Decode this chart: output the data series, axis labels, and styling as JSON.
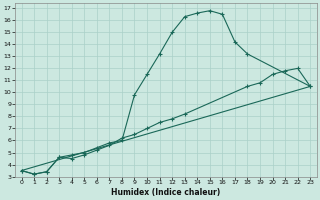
{
  "xlabel": "Humidex (Indice chaleur)",
  "bg_color": "#cce8e0",
  "grid_color": "#aad0c8",
  "line_color": "#1a6858",
  "xlim": [
    -0.5,
    23.5
  ],
  "ylim": [
    3,
    17.4
  ],
  "xticks": [
    0,
    1,
    2,
    3,
    4,
    5,
    6,
    7,
    8,
    9,
    10,
    11,
    12,
    13,
    14,
    15,
    16,
    17,
    18,
    19,
    20,
    21,
    22,
    23
  ],
  "yticks": [
    3,
    4,
    5,
    6,
    7,
    8,
    9,
    10,
    11,
    12,
    13,
    14,
    15,
    16,
    17
  ],
  "line1_x": [
    0,
    1,
    2,
    3,
    4,
    5,
    6,
    7,
    8,
    9,
    10,
    11,
    12,
    13,
    14,
    15,
    16,
    17,
    18,
    23
  ],
  "line1_y": [
    3.5,
    3.2,
    3.4,
    4.6,
    4.8,
    5.0,
    5.4,
    5.8,
    6.0,
    9.8,
    11.5,
    13.2,
    15.0,
    16.3,
    16.6,
    16.8,
    16.5,
    14.2,
    13.2,
    10.5
  ],
  "line2_x": [
    0,
    1,
    2,
    3,
    4,
    5,
    6,
    7,
    8,
    9,
    10,
    11,
    12,
    13,
    18,
    19,
    20,
    21,
    22,
    23
  ],
  "line2_y": [
    3.5,
    3.2,
    3.4,
    4.6,
    4.5,
    4.8,
    5.2,
    5.6,
    6.2,
    6.5,
    7.0,
    7.5,
    7.8,
    8.2,
    10.5,
    10.8,
    11.5,
    11.8,
    12.0,
    10.5
  ],
  "line4_x": [
    0,
    23
  ],
  "line4_y": [
    3.5,
    10.5
  ]
}
